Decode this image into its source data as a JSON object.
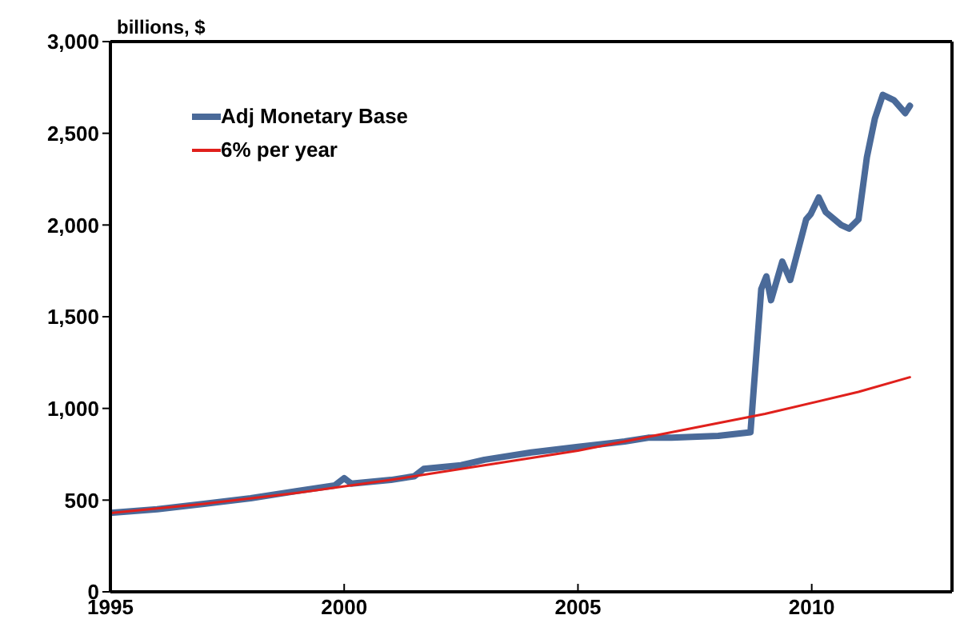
{
  "chart_data": {
    "type": "line",
    "ylabel": "billions, $",
    "xlim": [
      1995,
      2013
    ],
    "xticks": [
      1995,
      2000,
      2005,
      2010
    ],
    "ylim": [
      0,
      3000
    ],
    "yticks": [
      0,
      500,
      {
        "value": 1000,
        "label": "1,000"
      },
      {
        "value": 1500,
        "label": "1,500"
      },
      {
        "value": 2000,
        "label": "2,000"
      },
      {
        "value": 2500,
        "label": "2,500"
      },
      {
        "value": 3000,
        "label": "3,000"
      }
    ],
    "grid": false,
    "legend": "top left",
    "marker": "none",
    "series": [
      {
        "name": "Adj Monetary Base",
        "color": "#4a6a99",
        "x": [
          1995,
          1996,
          1997,
          1998,
          1999,
          1999.8,
          2000,
          2000.15,
          2001,
          2001.5,
          2001.7,
          2002.5,
          2003,
          2004,
          2005,
          2006,
          2006.5,
          2007,
          2008,
          2008.69,
          2008.92,
          2009.03,
          2009.13,
          2009.37,
          2009.54,
          2009.88,
          2009.98,
          2010.15,
          2010.3,
          2010.63,
          2010.8,
          2011,
          2011.18,
          2011.35,
          2011.52,
          2011.76,
          2012,
          2012.1
        ],
        "values": [
          430,
          450,
          480,
          510,
          550,
          580,
          620,
          590,
          610,
          630,
          670,
          690,
          720,
          760,
          790,
          820,
          840,
          840,
          850,
          870,
          1650,
          1720,
          1590,
          1800,
          1700,
          2030,
          2060,
          2150,
          2070,
          2000,
          1980,
          2030,
          2370,
          2580,
          2710,
          2680,
          2610,
          2650
        ]
      },
      {
        "name": "6% per year",
        "color": "#e0201c",
        "x": [
          1995,
          1997,
          1999,
          2001,
          2003,
          2005,
          2007,
          2009,
          2011,
          2012.1
        ],
        "values": [
          430,
          480,
          540,
          610,
          690,
          770,
          870,
          970,
          1090,
          1170
        ]
      }
    ]
  }
}
